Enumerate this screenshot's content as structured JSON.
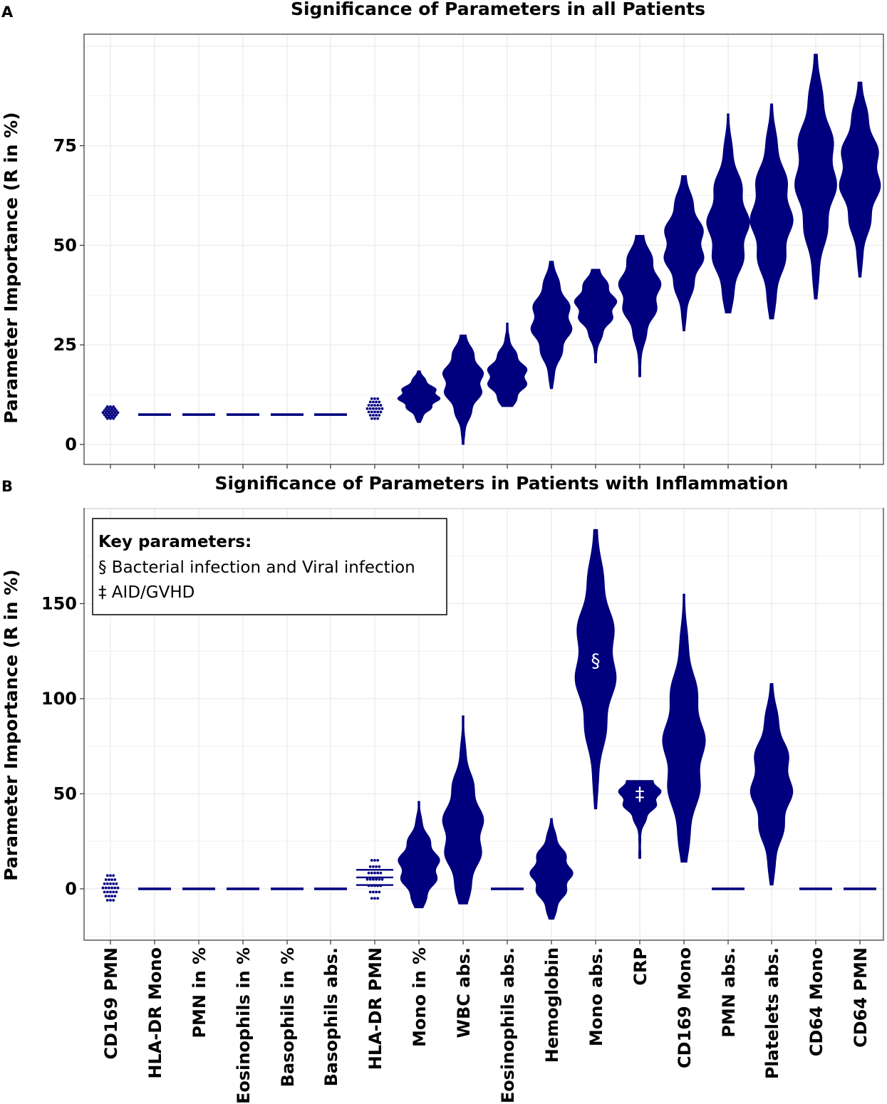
{
  "colors": {
    "violin": "#00007f",
    "grid": "#ebebeb",
    "axis": "#333333"
  },
  "chart_data": [
    {
      "panel_label": "A",
      "type": "violin",
      "title": "Significance of Parameters in all Patients",
      "ylabel": "Parameter Importance (R in %)",
      "ylim": [
        -5,
        103
      ],
      "yticks": [
        0,
        25,
        50,
        75
      ],
      "categories": [
        "CD169 PMN",
        "HLA-DR Mono",
        "PMN in %",
        "Eosinophils in %",
        "Basophils in %",
        "Basophils abs.",
        "HLA-DR PMN",
        "Mono in %",
        "WBC abs.",
        "Eosinophils abs.",
        "Hemoglobin",
        "Mono abs.",
        "CRP",
        "CD169 Mono",
        "PMN abs.",
        "Platelets abs.",
        "CD64 Mono",
        "CD64 PMN"
      ],
      "series": [
        {
          "name": "CD169 PMN",
          "kind": "dots",
          "median": 7.5,
          "min": 6.5,
          "max": 9.5
        },
        {
          "name": "HLA-DR Mono",
          "kind": "flat",
          "median": 7.5,
          "min": 7.5,
          "max": 7.5
        },
        {
          "name": "PMN in %",
          "kind": "flat",
          "median": 7.5,
          "min": 7.5,
          "max": 7.5
        },
        {
          "name": "Eosinophils in %",
          "kind": "flat",
          "median": 7.5,
          "min": 7.5,
          "max": 7.5
        },
        {
          "name": "Basophils in %",
          "kind": "flat",
          "median": 7.5,
          "min": 7.5,
          "max": 7.5
        },
        {
          "name": "Basophils abs.",
          "kind": "flat",
          "median": 7.5,
          "min": 7.5,
          "max": 7.5
        },
        {
          "name": "HLA-DR PMN",
          "kind": "dots",
          "median": 8.5,
          "min": 6.5,
          "max": 11.5
        },
        {
          "name": "Mono in %",
          "kind": "violin",
          "median": 12,
          "min": 5.5,
          "max": 18.5
        },
        {
          "name": "WBC abs.",
          "kind": "violin",
          "median": 16,
          "min": 0,
          "max": 27.5
        },
        {
          "name": "Eosinophils abs.",
          "kind": "violin",
          "median": 17,
          "min": 9.5,
          "max": 30.5
        },
        {
          "name": "Hemoglobin",
          "kind": "violin",
          "median": 31,
          "min": 14,
          "max": 46
        },
        {
          "name": "Mono abs.",
          "kind": "violin",
          "median": 35,
          "min": 20.5,
          "max": 44
        },
        {
          "name": "CRP",
          "kind": "violin",
          "median": 39,
          "min": 17,
          "max": 52.5
        },
        {
          "name": "CD169 Mono",
          "kind": "violin",
          "median": 50,
          "min": 28.5,
          "max": 67.5
        },
        {
          "name": "PMN abs.",
          "kind": "violin",
          "median": 55,
          "min": 33,
          "max": 83
        },
        {
          "name": "Platelets abs.",
          "kind": "violin",
          "median": 57,
          "min": 31.5,
          "max": 85.5
        },
        {
          "name": "CD64 Mono",
          "kind": "violin",
          "median": 68,
          "min": 36.5,
          "max": 98
        },
        {
          "name": "CD64 PMN",
          "kind": "violin",
          "median": 68,
          "min": 42,
          "max": 91
        }
      ]
    },
    {
      "panel_label": "B",
      "type": "violin",
      "title": "Significance of Parameters in Patients with Inflammation",
      "ylabel": "Parameter Importance (R in %)",
      "ylim": [
        -27,
        200
      ],
      "yticks": [
        0,
        50,
        100,
        150
      ],
      "categories": [
        "CD169 PMN",
        "HLA-DR Mono",
        "PMN in %",
        "Eosinophils in %",
        "Basophils in %",
        "Basophils abs.",
        "HLA-DR PMN",
        "Mono in %",
        "WBC abs.",
        "Eosinophils abs.",
        "Hemoglobin",
        "Mono abs.",
        "CRP",
        "CD169 Mono",
        "PMN abs.",
        "Platelets abs.",
        "CD64 Mono",
        "CD64 PMN"
      ],
      "series": [
        {
          "name": "CD169 PMN",
          "kind": "dots",
          "median": 0,
          "min": -6,
          "max": 7
        },
        {
          "name": "HLA-DR Mono",
          "kind": "flat",
          "median": 0,
          "min": 0,
          "max": 0
        },
        {
          "name": "PMN in %",
          "kind": "flat",
          "median": 0,
          "min": 0,
          "max": 0
        },
        {
          "name": "Eosinophils in %",
          "kind": "flat",
          "median": 0,
          "min": 0,
          "max": 0
        },
        {
          "name": "Basophils in %",
          "kind": "flat",
          "median": 0,
          "min": 0,
          "max": 0
        },
        {
          "name": "Basophils abs.",
          "kind": "flat",
          "median": 0,
          "min": 0,
          "max": 0
        },
        {
          "name": "HLA-DR PMN",
          "kind": "dots",
          "median": 6,
          "min": -5,
          "max": 15
        },
        {
          "name": "Mono in %",
          "kind": "violin",
          "median": 12,
          "min": -10,
          "max": 46
        },
        {
          "name": "WBC abs.",
          "kind": "violin",
          "median": 30,
          "min": -8,
          "max": 91
        },
        {
          "name": "Eosinophils abs.",
          "kind": "flat",
          "median": 0,
          "min": 0,
          "max": 0
        },
        {
          "name": "Hemoglobin",
          "kind": "violin",
          "median": 8,
          "min": -16,
          "max": 37
        },
        {
          "name": "Mono abs.",
          "kind": "violin",
          "median": 120,
          "min": 42,
          "max": 189,
          "marker": "§"
        },
        {
          "name": "CRP",
          "kind": "violin",
          "median": 50,
          "min": 16,
          "max": 57,
          "marker": "‡"
        },
        {
          "name": "CD169 Mono",
          "kind": "violin",
          "median": 75,
          "min": 14,
          "max": 155
        },
        {
          "name": "PMN abs.",
          "kind": "flat",
          "median": 0,
          "min": 0,
          "max": 0
        },
        {
          "name": "Platelets abs.",
          "kind": "violin",
          "median": 55,
          "min": 2,
          "max": 108
        },
        {
          "name": "CD64 Mono",
          "kind": "flat",
          "median": 0,
          "min": 0,
          "max": 0
        },
        {
          "name": "CD64 PMN",
          "kind": "flat",
          "median": 0,
          "min": 0,
          "max": 0
        }
      ],
      "legend": {
        "title": "Key parameters:",
        "items": [
          "§ Bacterial infection and Viral infection",
          "‡ AID/GVHD"
        ]
      }
    }
  ]
}
